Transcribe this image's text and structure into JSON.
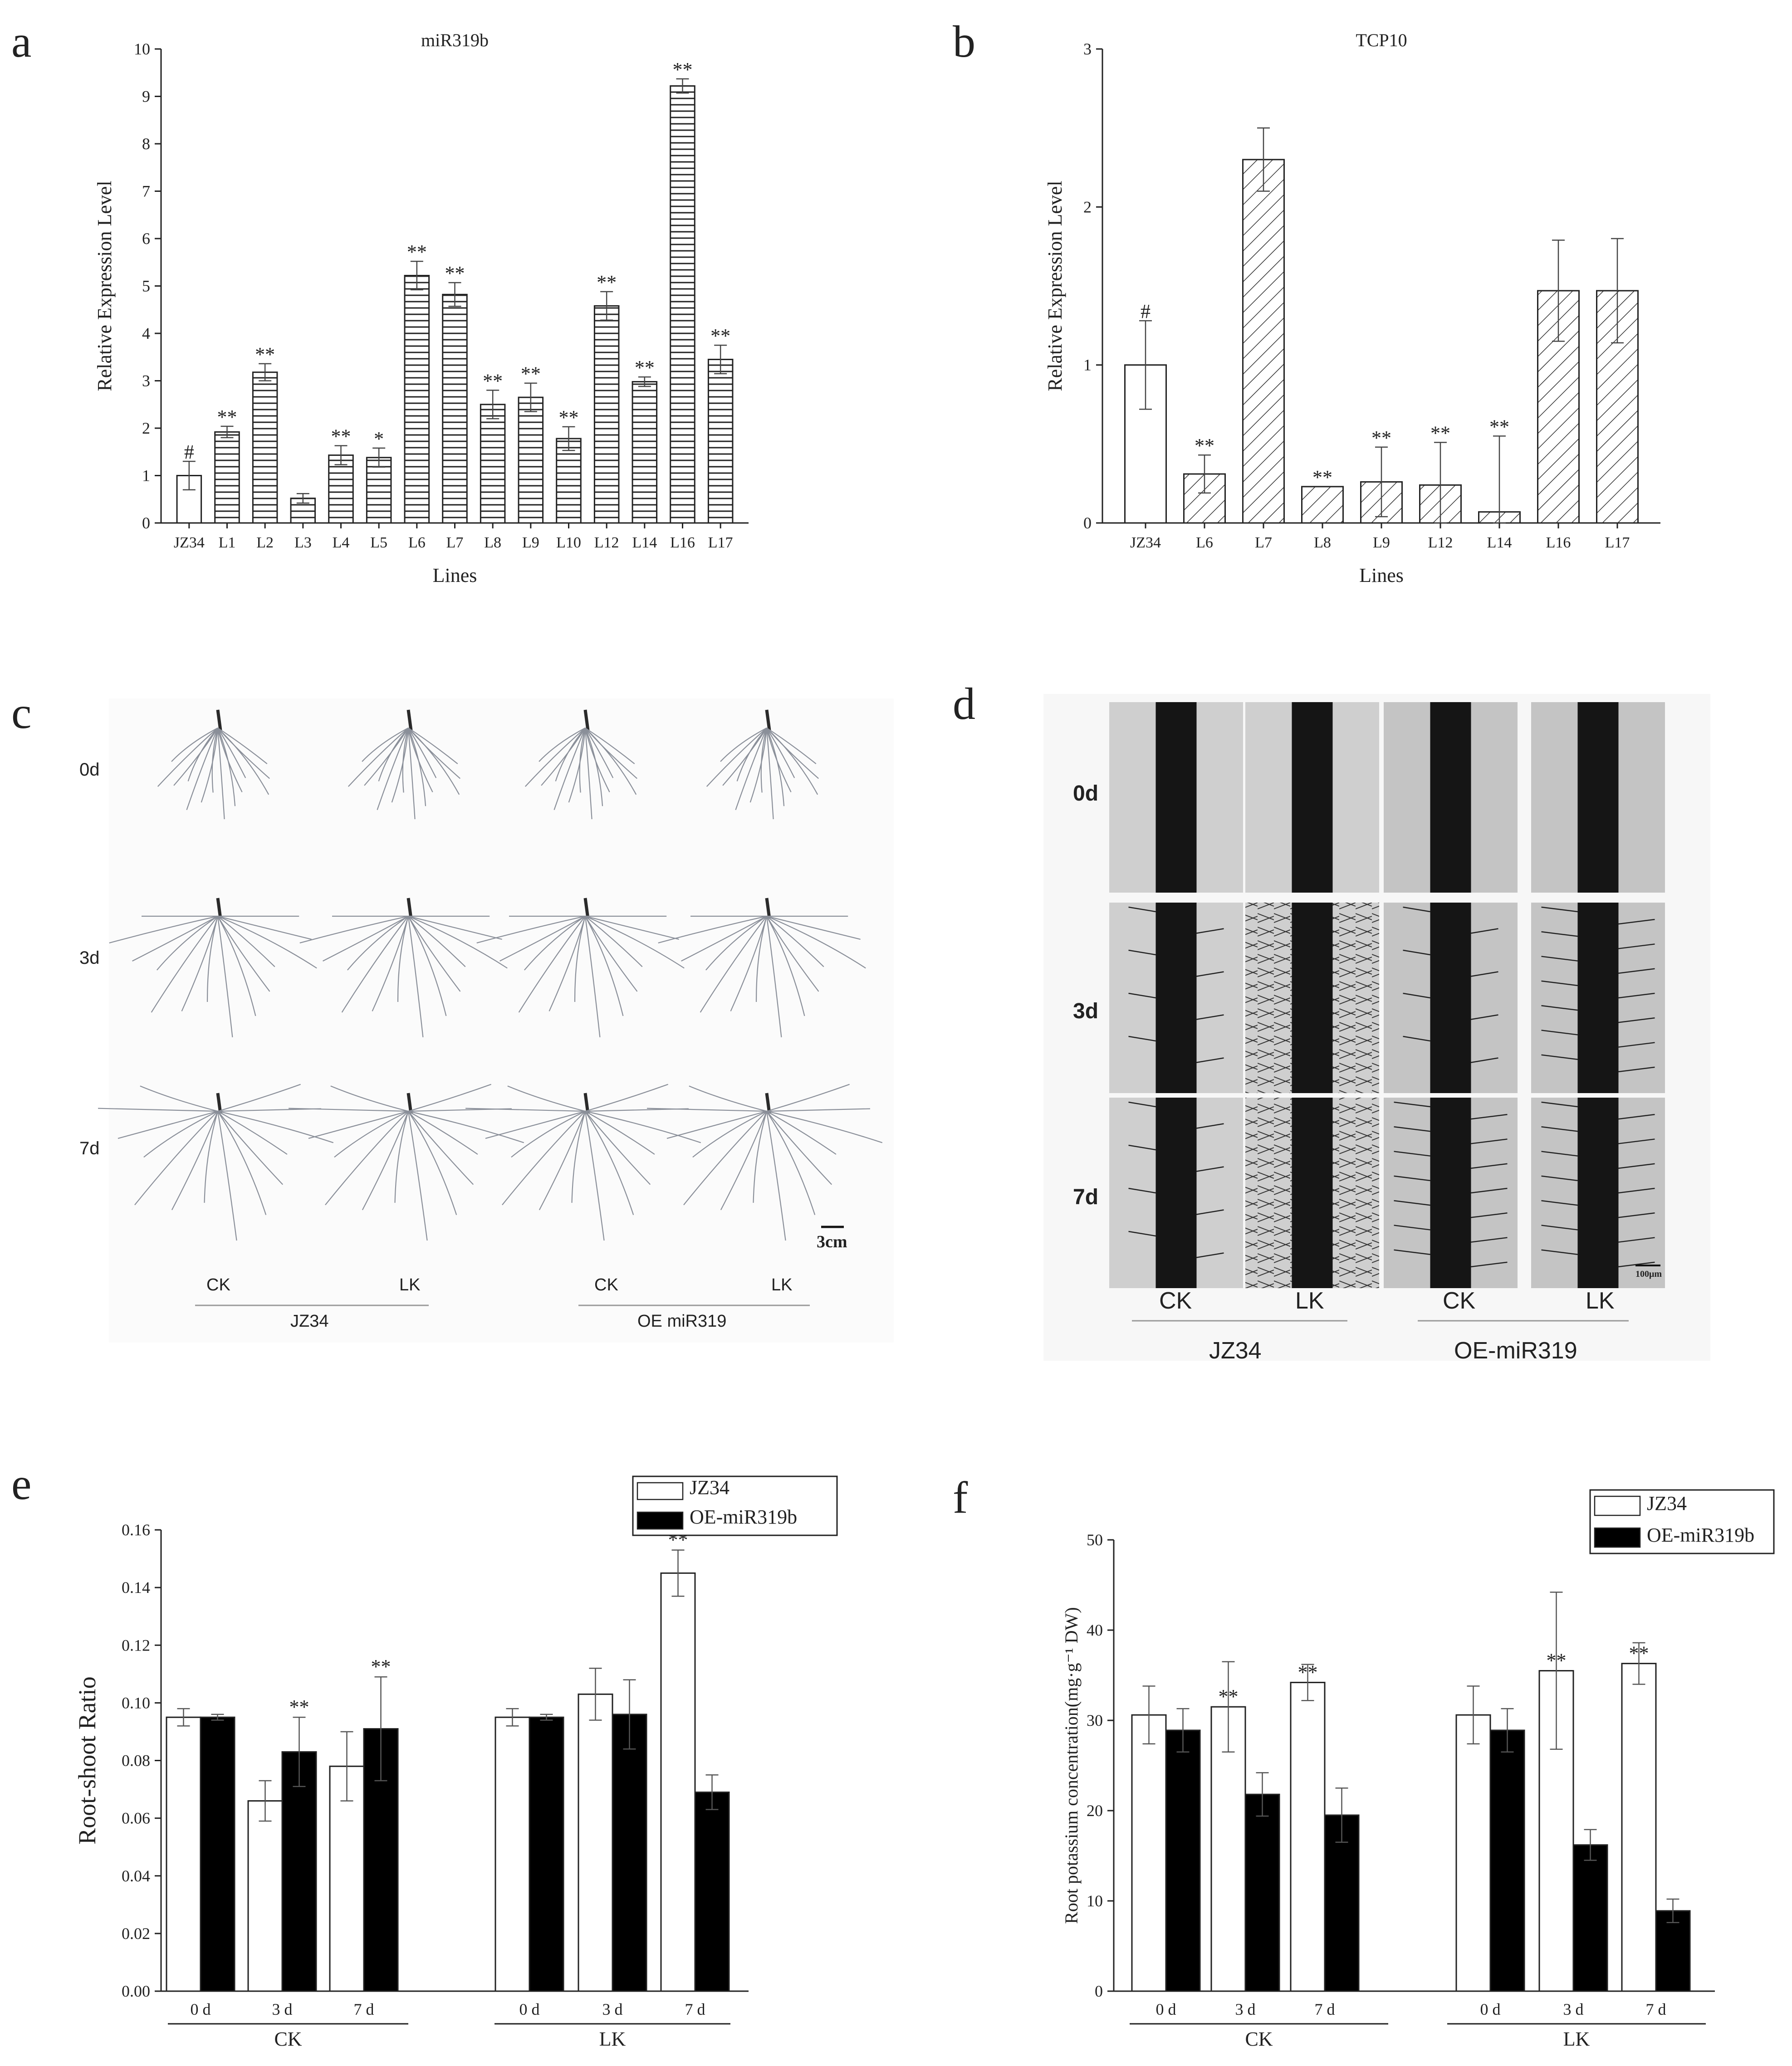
{
  "panel_letters": [
    "a",
    "b",
    "c",
    "d",
    "e",
    "f"
  ],
  "chart_data": [
    {
      "id": "a",
      "type": "bar",
      "title": "miR319b",
      "xlabel": "Lines",
      "ylabel": "Relative Expression Level",
      "ylim": [
        0,
        10
      ],
      "yticks": [
        "0",
        "1",
        "2",
        "3",
        "4",
        "5",
        "6",
        "7",
        "8",
        "9",
        "10"
      ],
      "categories": [
        "JZ34",
        "L1",
        "L2",
        "L3",
        "L4",
        "L5",
        "L6",
        "L7",
        "L8",
        "L9",
        "L10",
        "L12",
        "L14",
        "L16",
        "L17"
      ],
      "values": [
        1.0,
        1.92,
        3.18,
        0.52,
        1.43,
        1.38,
        5.22,
        4.82,
        2.5,
        2.65,
        1.78,
        4.58,
        2.98,
        9.22,
        3.45
      ],
      "errors": [
        0.3,
        0.12,
        0.18,
        0.1,
        0.2,
        0.2,
        0.3,
        0.25,
        0.3,
        0.3,
        0.25,
        0.3,
        0.1,
        0.15,
        0.3
      ],
      "significance": [
        "#",
        "**",
        "**",
        "",
        "**",
        "*",
        "**",
        "**",
        "**",
        "**",
        "**",
        "**",
        "**",
        "**",
        "**"
      ],
      "fill": [
        "white",
        "hlines",
        "hlines",
        "hlines",
        "hlines",
        "hlines",
        "hlines",
        "hlines",
        "hlines",
        "hlines",
        "hlines",
        "hlines",
        "hlines",
        "hlines",
        "hlines"
      ]
    },
    {
      "id": "b",
      "type": "bar",
      "title": "TCP10",
      "xlabel": "Lines",
      "ylabel": "Relative Expression Level",
      "ylim": [
        0,
        3
      ],
      "yticks": [
        "0",
        "1",
        "2",
        "3"
      ],
      "categories": [
        "JZ34",
        "L6",
        "L7",
        "L8",
        "L9",
        "L12",
        "L14",
        "L16",
        "L17"
      ],
      "values": [
        1.0,
        0.31,
        2.3,
        0.23,
        0.26,
        0.24,
        0.07,
        1.47,
        1.47
      ],
      "errors": [
        0.28,
        0.12,
        0.2,
        0.0,
        0.22,
        0.27,
        0.48,
        0.32,
        0.33
      ],
      "significance": [
        "#",
        "**",
        "",
        "**",
        "**",
        "**",
        "**",
        "",
        ""
      ],
      "fill": [
        "white",
        "diag",
        "diag",
        "diag",
        "diag",
        "diag",
        "diag",
        "diag",
        "diag"
      ]
    },
    {
      "id": "e",
      "type": "bar",
      "ylabel": "Root-shoot Ratio",
      "ylim": [
        0,
        0.16
      ],
      "yticks": [
        "0.00",
        "0.02",
        "0.04",
        "0.06",
        "0.08",
        "0.10",
        "0.12",
        "0.14",
        "0.16"
      ],
      "categories": [
        "0 d",
        "3 d",
        "7 d",
        "0 d",
        "3 d",
        "7 d"
      ],
      "groups": [
        "CK",
        "LK"
      ],
      "series": [
        {
          "name": "JZ34",
          "values": [
            0.095,
            0.066,
            0.078,
            0.095,
            0.103,
            0.145
          ],
          "errors": [
            0.003,
            0.007,
            0.012,
            0.003,
            0.009,
            0.008
          ],
          "color": "#ffffff"
        },
        {
          "name": "OE-miR319b",
          "values": [
            0.095,
            0.083,
            0.091,
            0.095,
            0.096,
            0.069
          ],
          "errors": [
            0.001,
            0.012,
            0.018,
            0.001,
            0.012,
            0.006
          ],
          "color": "#000000"
        }
      ],
      "significance": [
        "",
        "**",
        "**",
        "",
        "",
        "**"
      ],
      "legend": "top-right"
    },
    {
      "id": "f",
      "type": "bar",
      "ylabel": "Root potassium concentration(mg·g⁻¹ DW)",
      "ylim": [
        0,
        50
      ],
      "yticks": [
        "0",
        "10",
        "20",
        "30",
        "40",
        "50"
      ],
      "categories": [
        "0 d",
        "3 d",
        "7 d",
        "0 d",
        "3 d",
        "7 d"
      ],
      "groups": [
        "CK",
        "LK"
      ],
      "series": [
        {
          "name": "JZ34",
          "values": [
            30.6,
            31.5,
            34.2,
            30.6,
            35.5,
            36.3
          ],
          "errors": [
            3.2,
            5.0,
            2.0,
            3.2,
            8.7,
            2.3
          ],
          "color": "#ffffff"
        },
        {
          "name": "OE-miR319b",
          "values": [
            28.9,
            21.8,
            19.5,
            28.9,
            16.2,
            8.9
          ],
          "errors": [
            2.4,
            2.4,
            3.0,
            2.4,
            1.7,
            1.3
          ],
          "color": "#000000"
        }
      ],
      "significance": [
        "",
        "**",
        "**",
        "",
        "**",
        "**"
      ],
      "legend": "top-right"
    }
  ],
  "panel_c": {
    "rows": [
      "0d",
      "3d",
      "7d"
    ],
    "cols": [
      "CK",
      "LK",
      "CK",
      "LK"
    ],
    "groups": [
      "JZ34",
      "OE miR319"
    ],
    "scale": "3cm"
  },
  "panel_d": {
    "rows": [
      "0d",
      "3d",
      "7d"
    ],
    "cols": [
      "CK",
      "LK",
      "CK",
      "LK"
    ],
    "groups": [
      "JZ34",
      "OE-miR319"
    ],
    "scale": "100μm"
  }
}
